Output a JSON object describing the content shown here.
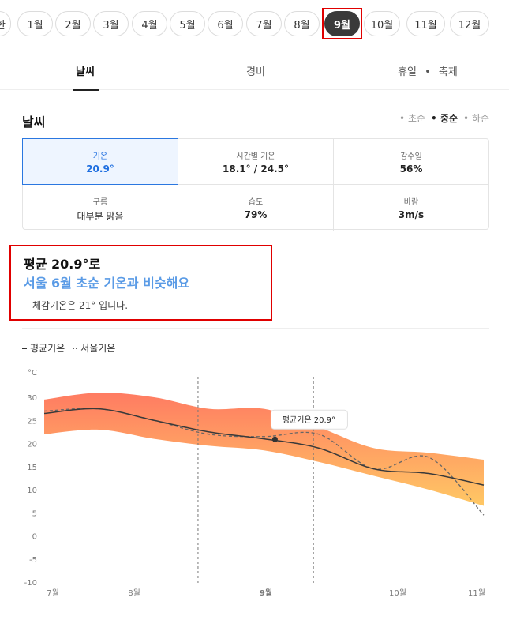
{
  "months": [
    {
      "label": "1월",
      "active": false
    },
    {
      "label": "2월",
      "active": false
    },
    {
      "label": "3월",
      "active": false
    },
    {
      "label": "4월",
      "active": false
    },
    {
      "label": "5월",
      "active": false
    },
    {
      "label": "6월",
      "active": false
    },
    {
      "label": "7월",
      "active": false
    },
    {
      "label": "8월",
      "active": false
    },
    {
      "label": "9월",
      "active": true
    },
    {
      "label": "10월",
      "active": false
    },
    {
      "label": "11월",
      "active": false
    },
    {
      "label": "12월",
      "active": false
    }
  ],
  "partial_month_label": "한",
  "tabs": {
    "weather": "날씨",
    "cost": "경비",
    "holiday": "휴일",
    "festival": "축제"
  },
  "section": {
    "title": "날씨"
  },
  "periods": [
    "초순",
    "중순",
    "하순"
  ],
  "stats": [
    {
      "label": "기온",
      "value": "20.9°"
    },
    {
      "label": "시간별 기온",
      "value": "18.1° / 24.5°"
    },
    {
      "label": "강수일",
      "value": "56%"
    },
    {
      "label": "구름",
      "value": "대부분 맑음"
    },
    {
      "label": "습도",
      "value": "79%"
    },
    {
      "label": "바람",
      "value": "3m/s"
    }
  ],
  "summary": {
    "line1": "평균 20.9°로",
    "line2": "서울 6월 초순 기온과 비슷해요",
    "note": "체감기온은 21° 입니다."
  },
  "legend": {
    "avg": "평균기온",
    "seoul": "서울기온"
  },
  "colors": {
    "accent": "#1f6fe0",
    "highlight_text": "#5a9be6",
    "band_top": "#ff7b62",
    "band_bottom": "#ffc864",
    "frame": "#e00000"
  },
  "chart_data": {
    "type": "area",
    "unit_label": "°C",
    "y_ticks": [
      30,
      25,
      20,
      15,
      10,
      5,
      0,
      -5,
      -10
    ],
    "ylim": [
      -10,
      30
    ],
    "x_labels": [
      "7월",
      "8월",
      "9월",
      "10월",
      "11월"
    ],
    "x": [
      0.0,
      0.5,
      1.0,
      1.5,
      2.0,
      2.5,
      3.0,
      3.5,
      4.0
    ],
    "band_high": [
      29.5,
      31.0,
      30.0,
      27.5,
      27.5,
      23.5,
      19.0,
      18.0,
      16.5
    ],
    "band_low": [
      22.0,
      23.0,
      21.0,
      19.5,
      18.5,
      16.0,
      13.0,
      10.0,
      6.5
    ],
    "series": [
      {
        "name": "평균기온",
        "values": [
          26.5,
          27.5,
          25.0,
          22.5,
          21.0,
          19.0,
          14.5,
          13.5,
          11.0
        ]
      },
      {
        "name": "서울기온",
        "values": [
          27.0,
          27.5,
          25.0,
          22.0,
          21.5,
          22.0,
          14.5,
          17.0,
          4.5
        ]
      }
    ],
    "highlight": {
      "x": 2.1,
      "value": 20.9,
      "label": "평균기온 20.9°"
    },
    "current_month": "9월"
  }
}
